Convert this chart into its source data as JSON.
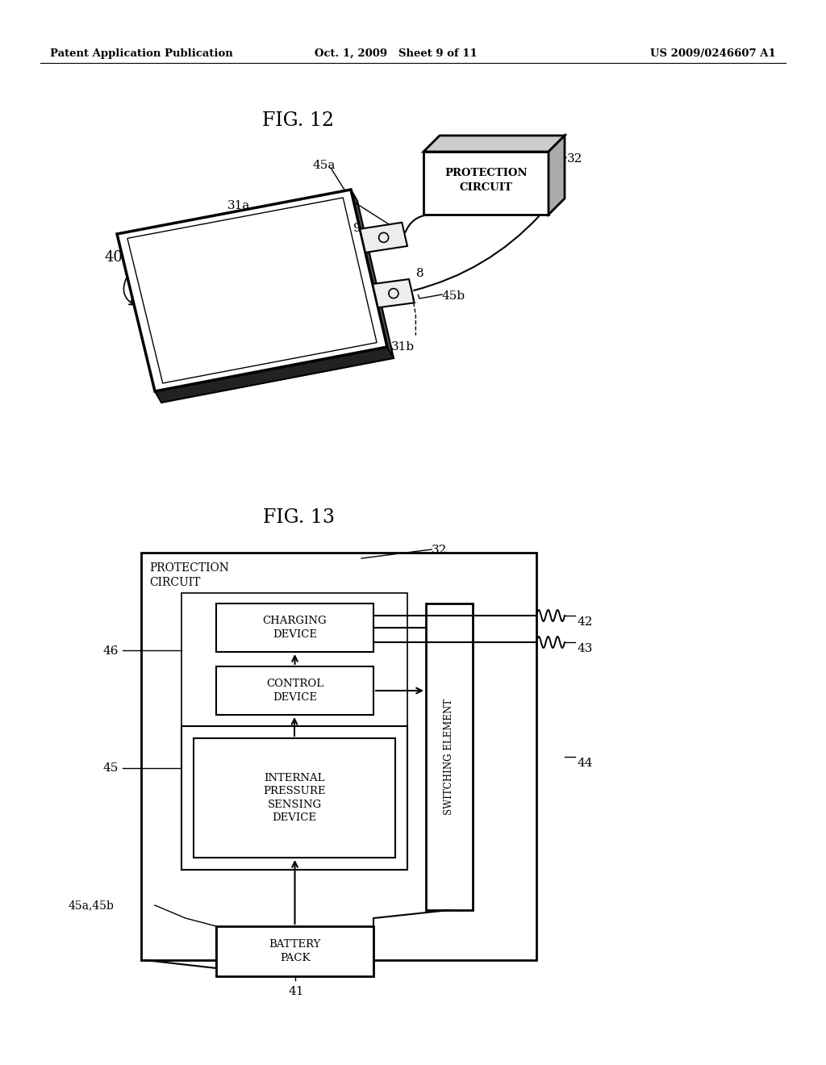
{
  "bg_color": "#ffffff",
  "header_left": "Patent Application Publication",
  "header_mid": "Oct. 1, 2009   Sheet 9 of 11",
  "header_right": "US 2009/0246607 A1",
  "fig12_title": "FIG. 12",
  "fig13_title": "FIG. 13",
  "text_color": "#000000",
  "line_color": "#000000"
}
